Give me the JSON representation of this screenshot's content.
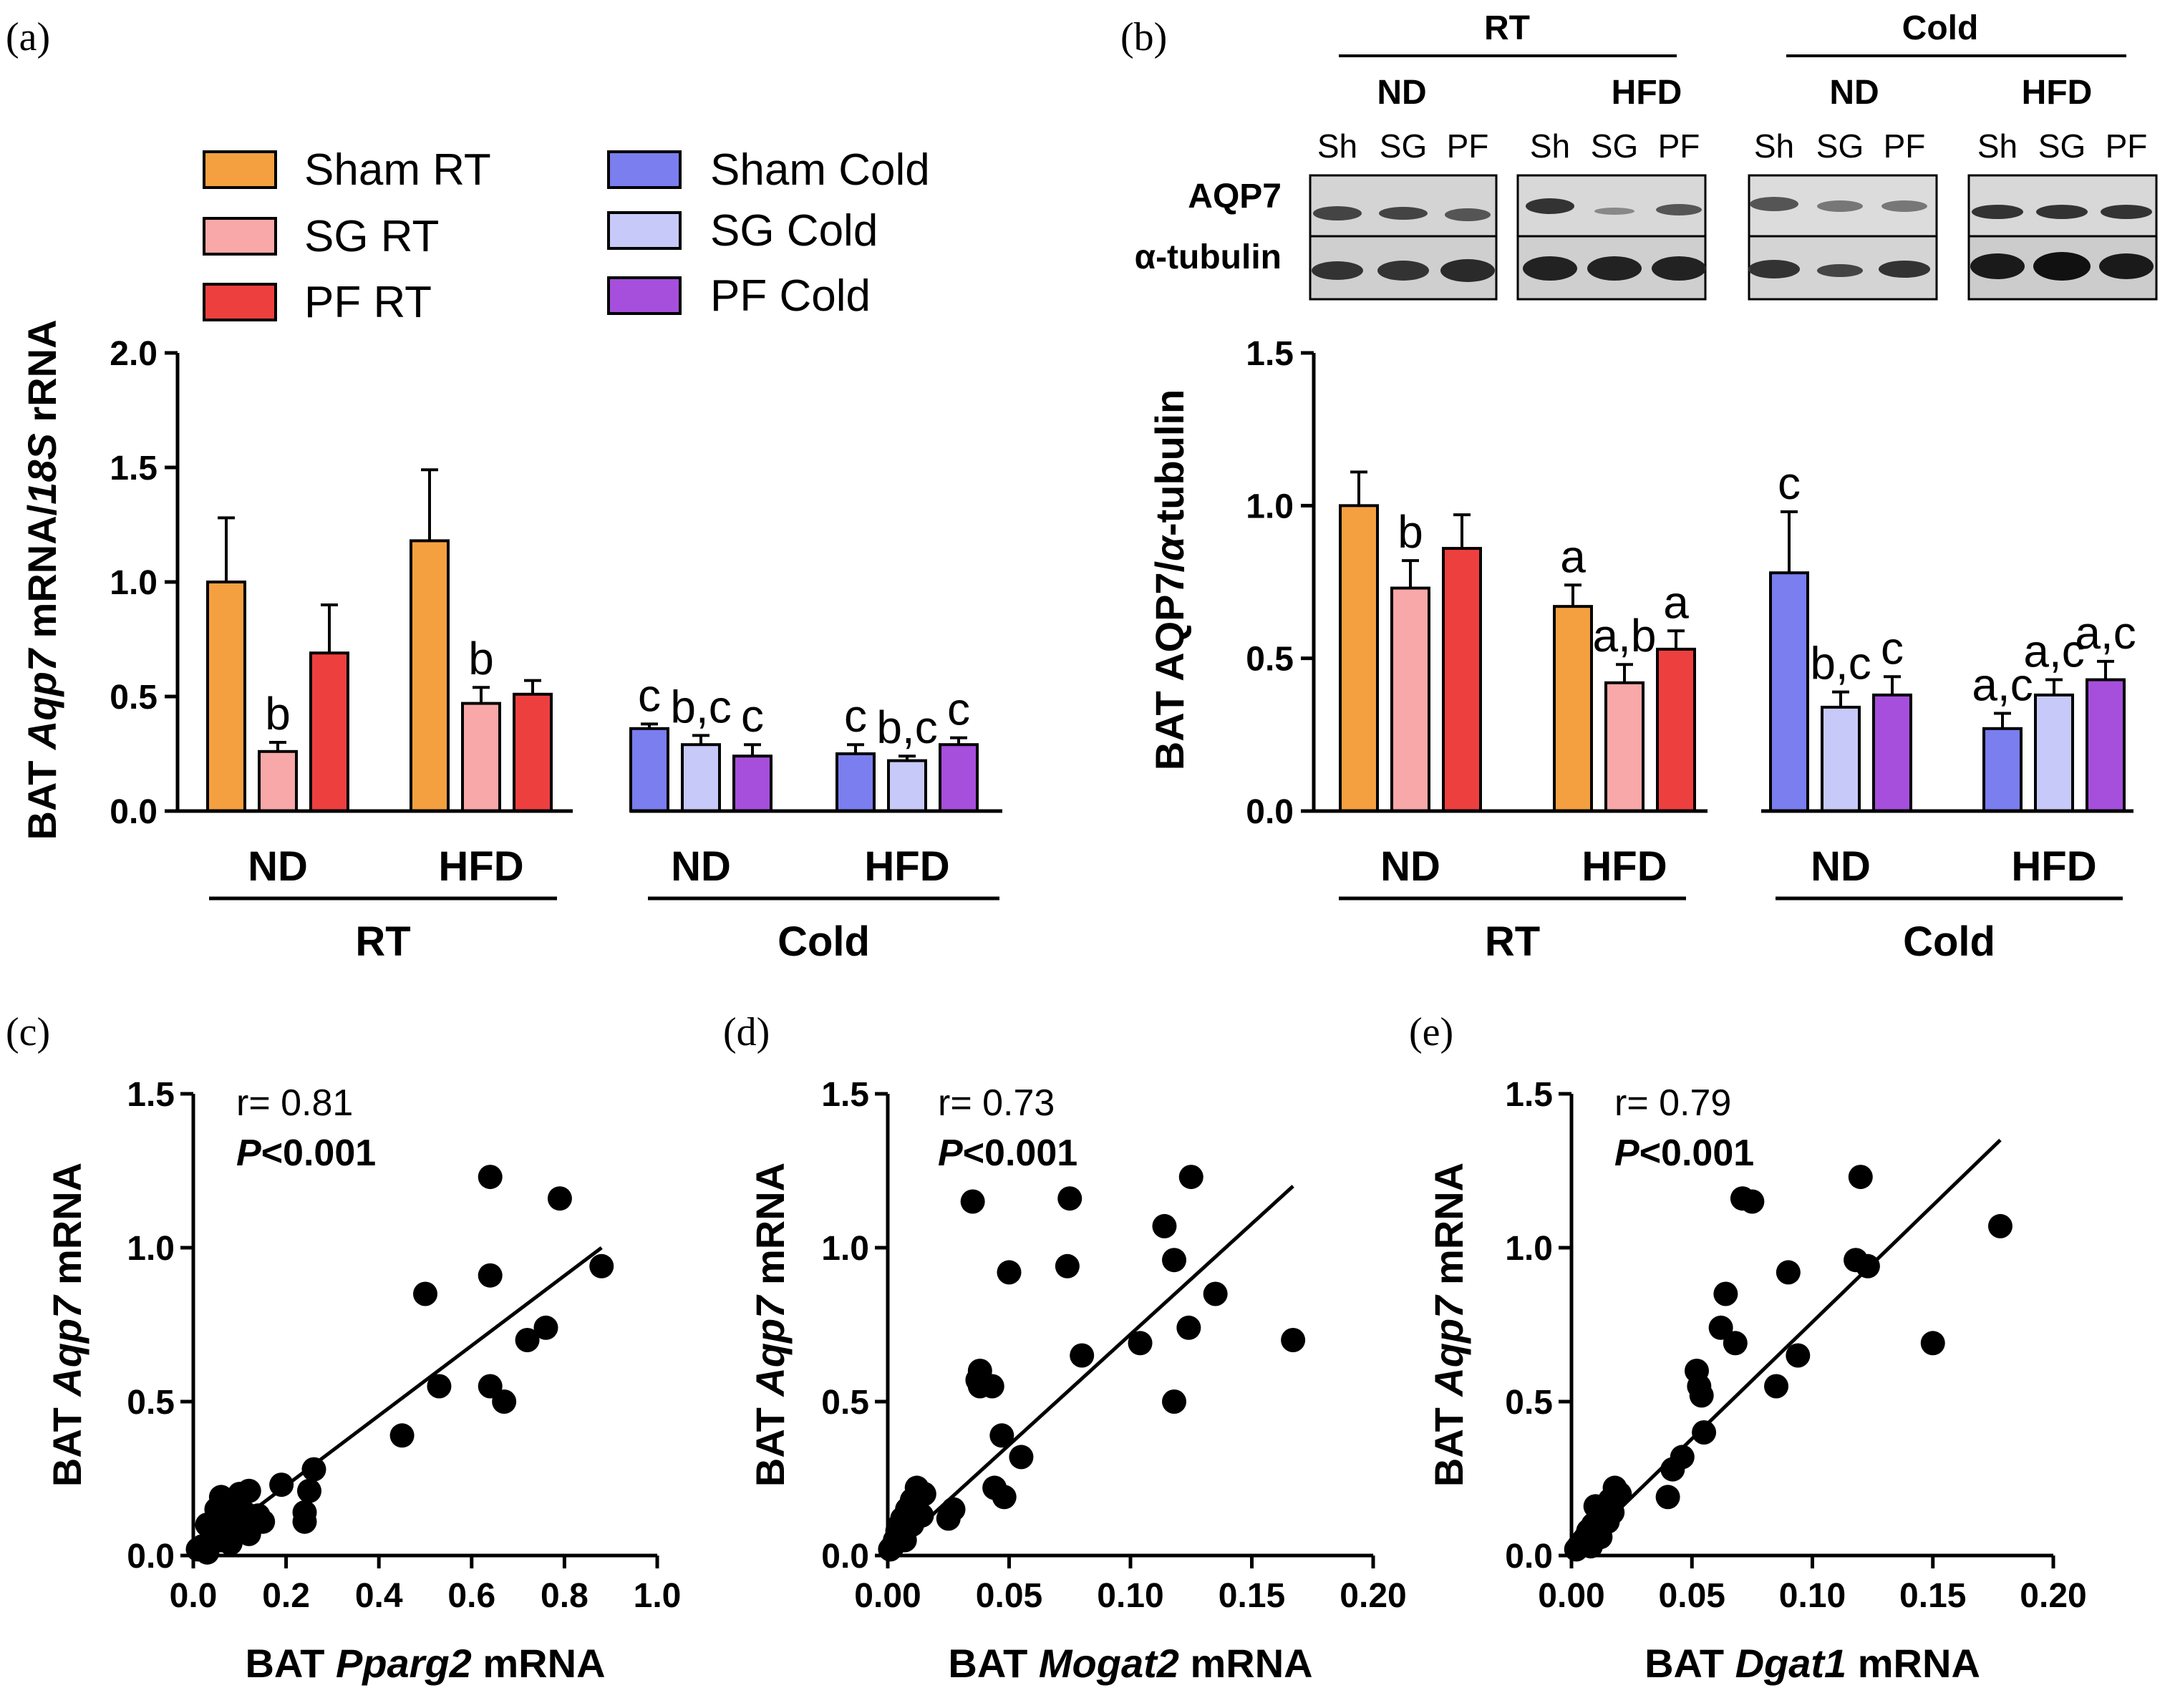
{
  "colors": {
    "sham_rt": "#F5A040",
    "sg_rt": "#F8A8A8",
    "pf_rt": "#EE3F3F",
    "sham_cold": "#7A7EEF",
    "sg_cold": "#C7C9F8",
    "pf_cold": "#A64FDC",
    "ink": "#000000"
  },
  "panels": {
    "a": "(a)",
    "b": "(b)",
    "c": "(c)",
    "d": "(d)",
    "e": "(e)"
  },
  "legend": [
    "Sham RT",
    "SG RT",
    "PF RT",
    "Sham Cold",
    "SG Cold",
    "PF Cold"
  ],
  "blot": {
    "rt_label": "RT",
    "cold_label": "Cold",
    "diet_nd": "ND",
    "diet_hfd": "HFD",
    "lanes": [
      "Sh",
      "SG",
      "PF"
    ],
    "row1": "AQP7",
    "row2": "α-tubulin"
  },
  "chart_data": [
    {
      "id": "a",
      "type": "bar",
      "ylabel_parts": [
        "BAT ",
        "Aqp7",
        " mRNA/",
        "18S",
        " rRNA"
      ],
      "ylim": [
        0,
        2.0
      ],
      "yticks": [
        "0.0",
        "0.5",
        "1.0",
        "1.5",
        "2.0"
      ],
      "diet_labels": [
        "ND",
        "HFD",
        "ND",
        "HFD"
      ],
      "temp_labels": [
        "RT",
        "Cold"
      ],
      "series_names": [
        "Sham RT",
        "SG RT",
        "PF RT",
        "Sham Cold",
        "SG Cold",
        "PF Cold"
      ],
      "groups": [
        {
          "diet": "ND",
          "temp": "RT",
          "values": [
            1.0,
            0.26,
            0.69
          ],
          "errors": [
            0.28,
            0.04,
            0.21
          ],
          "letters": [
            "",
            "b",
            ""
          ]
        },
        {
          "diet": "HFD",
          "temp": "RT",
          "values": [
            1.18,
            0.47,
            0.51
          ],
          "errors": [
            0.31,
            0.07,
            0.06
          ],
          "letters": [
            "",
            "b",
            ""
          ]
        },
        {
          "diet": "ND",
          "temp": "Cold",
          "values": [
            0.36,
            0.29,
            0.24
          ],
          "errors": [
            0.02,
            0.04,
            0.05
          ],
          "letters": [
            "c",
            "b,c",
            "c"
          ]
        },
        {
          "diet": "HFD",
          "temp": "Cold",
          "values": [
            0.25,
            0.22,
            0.29
          ],
          "errors": [
            0.04,
            0.02,
            0.03
          ],
          "letters": [
            "c",
            "b,c",
            "c"
          ]
        }
      ]
    },
    {
      "id": "b",
      "type": "bar",
      "ylabel_parts": [
        "BAT AQP7/",
        "α",
        "-tubulin"
      ],
      "ylim": [
        0,
        1.5
      ],
      "yticks": [
        "0.0",
        "0.5",
        "1.0",
        "1.5"
      ],
      "diet_labels": [
        "ND",
        "HFD",
        "ND",
        "HFD"
      ],
      "temp_labels": [
        "RT",
        "Cold"
      ],
      "series_names": [
        "Sham RT",
        "SG RT",
        "PF RT",
        "Sham Cold",
        "SG Cold",
        "PF Cold"
      ],
      "groups": [
        {
          "diet": "ND",
          "temp": "RT",
          "values": [
            1.0,
            0.73,
            0.86
          ],
          "errors": [
            0.11,
            0.09,
            0.11
          ],
          "letters": [
            "",
            "b",
            ""
          ]
        },
        {
          "diet": "HFD",
          "temp": "RT",
          "values": [
            0.67,
            0.42,
            0.53
          ],
          "errors": [
            0.07,
            0.06,
            0.06
          ],
          "letters": [
            "a",
            "a,b",
            "a"
          ]
        },
        {
          "diet": "ND",
          "temp": "Cold",
          "values": [
            0.78,
            0.34,
            0.38
          ],
          "errors": [
            0.2,
            0.05,
            0.06
          ],
          "letters": [
            "c",
            "b,c",
            "c"
          ]
        },
        {
          "diet": "HFD",
          "temp": "Cold",
          "values": [
            0.27,
            0.38,
            0.43
          ],
          "errors": [
            0.05,
            0.05,
            0.06
          ],
          "letters": [
            "a,c",
            "a,c",
            "a,c"
          ]
        }
      ]
    },
    {
      "id": "c",
      "type": "scatter",
      "xlabel_parts": [
        "BAT ",
        "Pparg2",
        " mRNA"
      ],
      "ylabel_parts": [
        "BAT ",
        "Aqp7",
        " mRNA"
      ],
      "xlim": [
        0,
        1.0
      ],
      "ylim": [
        0,
        1.5
      ],
      "xticks": [
        "0.0",
        "0.2",
        "0.4",
        "0.6",
        "0.8",
        "1.0"
      ],
      "yticks": [
        "0.0",
        "0.5",
        "1.0",
        "1.5"
      ],
      "r_text": "r= 0.81",
      "p_text": [
        "P",
        "<0.001"
      ],
      "fit": [
        [
          0.0,
          0.0
        ],
        [
          0.88,
          1.0
        ]
      ],
      "points": [
        [
          0.64,
          1.23
        ],
        [
          0.79,
          1.16
        ],
        [
          0.88,
          0.94
        ],
        [
          0.64,
          0.91
        ],
        [
          0.5,
          0.85
        ],
        [
          0.76,
          0.74
        ],
        [
          0.72,
          0.7
        ],
        [
          0.53,
          0.55
        ],
        [
          0.64,
          0.55
        ],
        [
          0.67,
          0.5
        ],
        [
          0.45,
          0.39
        ],
        [
          0.26,
          0.28
        ],
        [
          0.19,
          0.23
        ],
        [
          0.25,
          0.21
        ],
        [
          0.24,
          0.14
        ],
        [
          0.24,
          0.11
        ],
        [
          0.12,
          0.21
        ],
        [
          0.1,
          0.2
        ],
        [
          0.08,
          0.18
        ],
        [
          0.06,
          0.19
        ],
        [
          0.05,
          0.15
        ],
        [
          0.03,
          0.1
        ],
        [
          0.07,
          0.12
        ],
        [
          0.11,
          0.14
        ],
        [
          0.14,
          0.13
        ],
        [
          0.15,
          0.11
        ],
        [
          0.09,
          0.09
        ],
        [
          0.04,
          0.06
        ],
        [
          0.06,
          0.05
        ],
        [
          0.02,
          0.03
        ],
        [
          0.01,
          0.02
        ],
        [
          0.03,
          0.01
        ],
        [
          0.08,
          0.04
        ],
        [
          0.12,
          0.07
        ],
        [
          0.05,
          0.08
        ],
        [
          0.09,
          0.15
        ]
      ]
    },
    {
      "id": "d",
      "type": "scatter",
      "xlabel_parts": [
        "BAT ",
        "Mogat2",
        " mRNA"
      ],
      "ylabel_parts": [
        "BAT ",
        "Aqp7",
        " mRNA"
      ],
      "xlim": [
        0,
        0.2
      ],
      "ylim": [
        0,
        1.5
      ],
      "xticks": [
        "0.00",
        "0.05",
        "0.10",
        "0.15",
        "0.20"
      ],
      "yticks": [
        "0.0",
        "0.5",
        "1.0",
        "1.5"
      ],
      "r_text": "r= 0.73",
      "p_text": [
        "P",
        "<0.001"
      ],
      "fit": [
        [
          0.0,
          0.0
        ],
        [
          0.167,
          1.2
        ]
      ],
      "points": [
        [
          0.125,
          1.23
        ],
        [
          0.035,
          1.15
        ],
        [
          0.075,
          1.16
        ],
        [
          0.114,
          1.07
        ],
        [
          0.118,
          0.96
        ],
        [
          0.074,
          0.94
        ],
        [
          0.05,
          0.92
        ],
        [
          0.135,
          0.85
        ],
        [
          0.124,
          0.74
        ],
        [
          0.104,
          0.69
        ],
        [
          0.167,
          0.7
        ],
        [
          0.08,
          0.65
        ],
        [
          0.038,
          0.6
        ],
        [
          0.037,
          0.57
        ],
        [
          0.038,
          0.55
        ],
        [
          0.043,
          0.55
        ],
        [
          0.118,
          0.5
        ],
        [
          0.047,
          0.39
        ],
        [
          0.055,
          0.32
        ],
        [
          0.044,
          0.22
        ],
        [
          0.048,
          0.19
        ],
        [
          0.027,
          0.15
        ],
        [
          0.025,
          0.12
        ],
        [
          0.015,
          0.2
        ],
        [
          0.012,
          0.22
        ],
        [
          0.01,
          0.18
        ],
        [
          0.008,
          0.15
        ],
        [
          0.006,
          0.12
        ],
        [
          0.005,
          0.1
        ],
        [
          0.004,
          0.08
        ],
        [
          0.003,
          0.05
        ],
        [
          0.002,
          0.03
        ],
        [
          0.001,
          0.02
        ],
        [
          0.007,
          0.05
        ],
        [
          0.01,
          0.1
        ],
        [
          0.014,
          0.13
        ]
      ]
    },
    {
      "id": "e",
      "type": "scatter",
      "xlabel_parts": [
        "BAT ",
        "Dgat1",
        " mRNA"
      ],
      "ylabel_parts": [
        "BAT ",
        "Aqp7",
        " mRNA"
      ],
      "xlim": [
        0,
        0.2
      ],
      "ylim": [
        0,
        1.5
      ],
      "xticks": [
        "0.00",
        "0.05",
        "0.10",
        "0.15",
        "0.20"
      ],
      "yticks": [
        "0.0",
        "0.5",
        "1.0",
        "1.5"
      ],
      "r_text": "r= 0.79",
      "p_text": [
        "P",
        "<0.001"
      ],
      "fit": [
        [
          0.0,
          0.0
        ],
        [
          0.178,
          1.35
        ]
      ],
      "points": [
        [
          0.12,
          1.23
        ],
        [
          0.071,
          1.16
        ],
        [
          0.075,
          1.15
        ],
        [
          0.178,
          1.07
        ],
        [
          0.118,
          0.96
        ],
        [
          0.123,
          0.94
        ],
        [
          0.09,
          0.92
        ],
        [
          0.064,
          0.85
        ],
        [
          0.062,
          0.74
        ],
        [
          0.068,
          0.69
        ],
        [
          0.094,
          0.65
        ],
        [
          0.15,
          0.69
        ],
        [
          0.052,
          0.6
        ],
        [
          0.053,
          0.55
        ],
        [
          0.054,
          0.52
        ],
        [
          0.085,
          0.55
        ],
        [
          0.055,
          0.4
        ],
        [
          0.046,
          0.32
        ],
        [
          0.042,
          0.28
        ],
        [
          0.04,
          0.19
        ],
        [
          0.02,
          0.2
        ],
        [
          0.018,
          0.22
        ],
        [
          0.016,
          0.18
        ],
        [
          0.013,
          0.15
        ],
        [
          0.011,
          0.12
        ],
        [
          0.009,
          0.1
        ],
        [
          0.007,
          0.08
        ],
        [
          0.005,
          0.05
        ],
        [
          0.003,
          0.03
        ],
        [
          0.002,
          0.02
        ],
        [
          0.008,
          0.03
        ],
        [
          0.012,
          0.06
        ],
        [
          0.015,
          0.11
        ],
        [
          0.017,
          0.14
        ],
        [
          0.01,
          0.16
        ],
        [
          0.006,
          0.06
        ]
      ]
    }
  ]
}
